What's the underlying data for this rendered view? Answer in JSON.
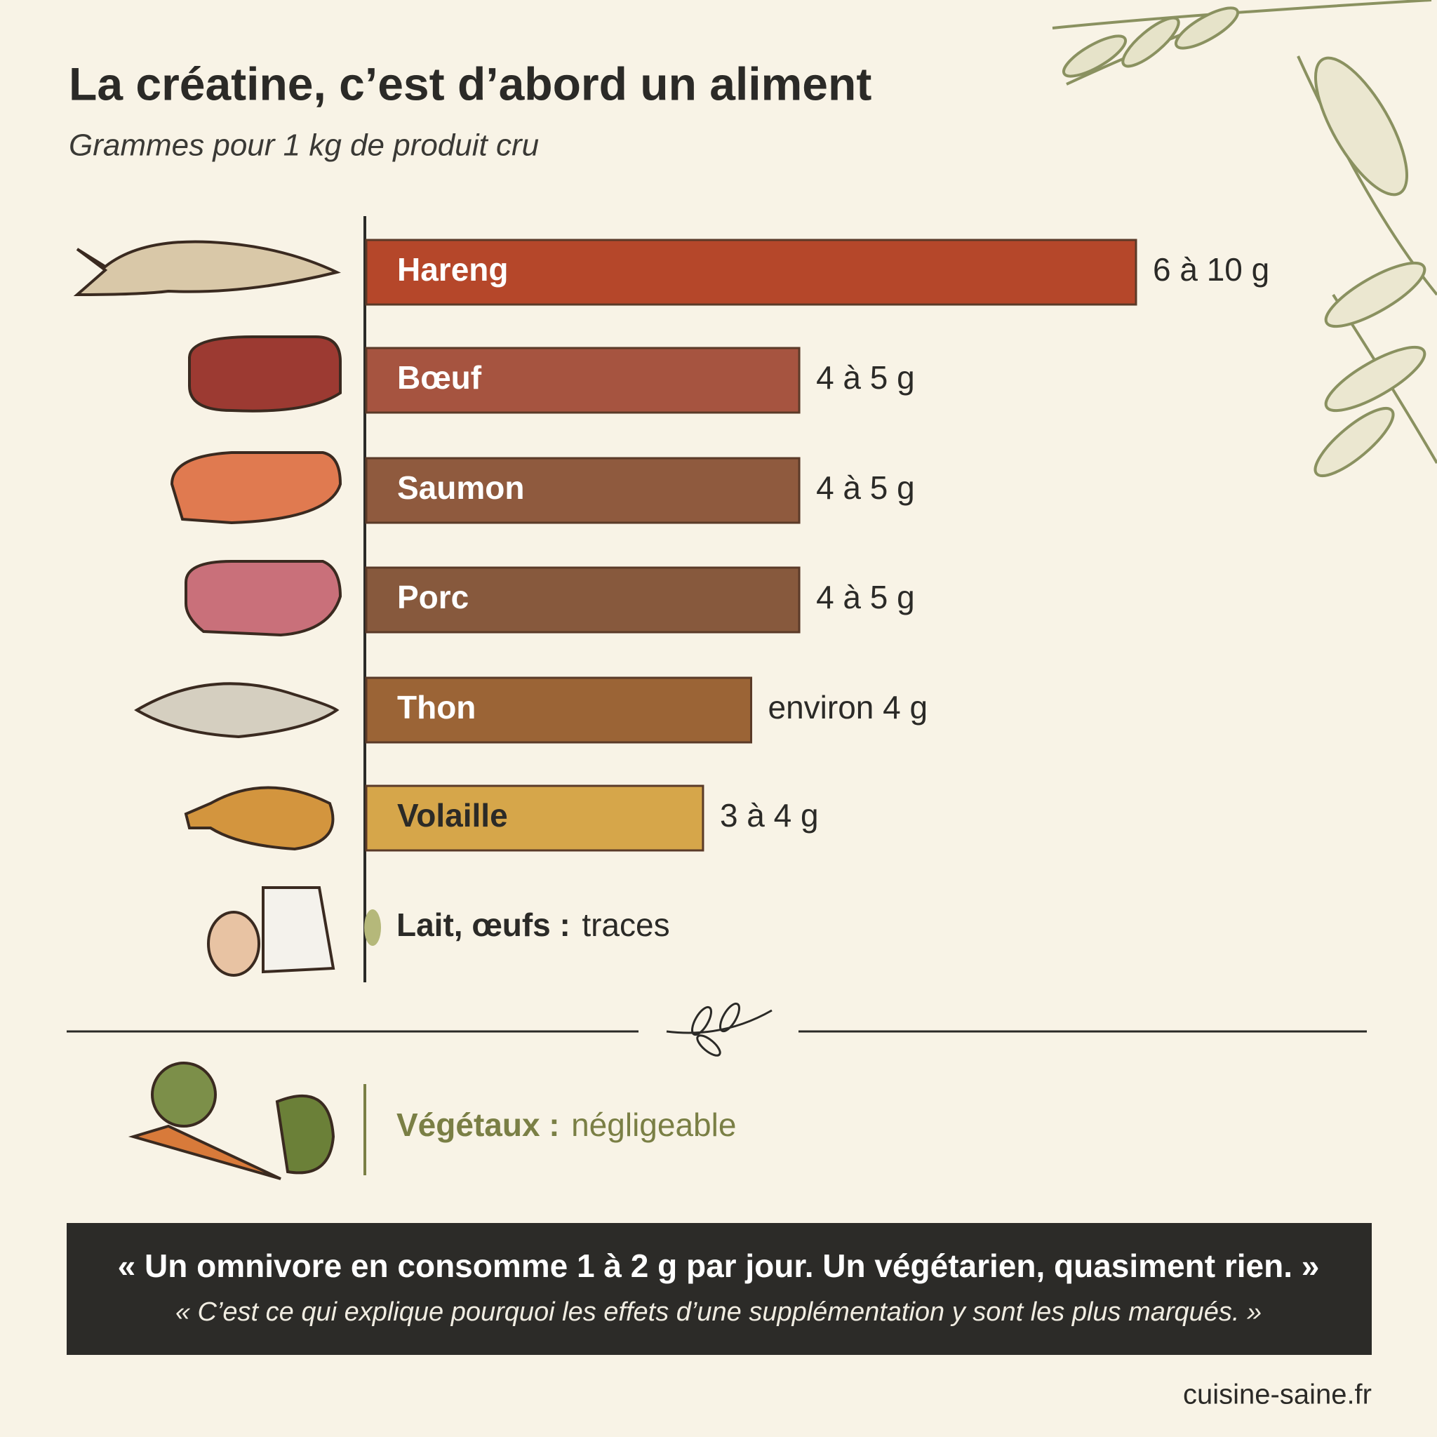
{
  "chart_data": {
    "type": "bar",
    "orientation": "horizontal",
    "title": "La créatine, c’est d’abord un aliment",
    "subtitle": "Grammes pour 1 kg de produit cru",
    "categories": [
      "Hareng",
      "Bœuf",
      "Saumon",
      "Porc",
      "Thon",
      "Volaille"
    ],
    "values": [
      8,
      4.5,
      4.5,
      4.5,
      4,
      3.5
    ],
    "value_labels": [
      "6 à 10 g",
      "4 à 5 g",
      "4 à 5 g",
      "4 à 5 g",
      "environ 4 g",
      "3 à 4 g"
    ],
    "colors": [
      "#b5472a",
      "#a65440",
      "#8f5a3e",
      "#87593d",
      "#9b6436",
      "#d6a64a"
    ],
    "xlim": [
      0,
      8
    ]
  },
  "notes": [
    {
      "label": "Lait, œufs :",
      "text": "traces"
    },
    {
      "label": "Végétaux :",
      "text": "négligeable"
    }
  ],
  "quote": "« Un omnivore en consomme 1 à 2 g par jour. Un végétarien, quasiment rien. »",
  "quote_detail": "« C’est ce qui explique pourquoi les effets d’une supplémentation y sont les plus marqués. »",
  "source": "cuisine-saine.fr"
}
